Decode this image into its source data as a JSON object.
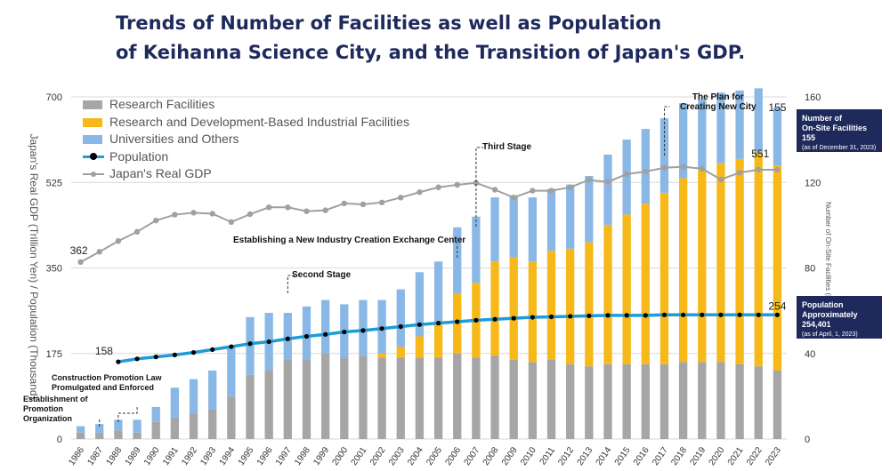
{
  "title": {
    "line1": "Trends of Number of Facilities as well as Population",
    "line2": "of Keihanna Science City, and the Transition of Japan's GDP."
  },
  "colors": {
    "research": "#a6a6a6",
    "rd_industrial": "#f6b919",
    "universities": "#8ab8e6",
    "population": "#1f9bd7",
    "gdp": "#a0a0a0",
    "title": "#1f2a5c"
  },
  "legend": {
    "research": "Research Facilities",
    "rd_industrial": "Research and Development-Based Industrial Facilities",
    "universities": "Universities and Others",
    "population": "Population",
    "gdp": "Japan's Real GDP"
  },
  "info_boxes": {
    "facilities": {
      "line1": "Number of",
      "line2": "On-Site Facilities 155",
      "line3": "(as of December 31, 2023)"
    },
    "population": {
      "line1": "Population",
      "line2": "Approximately",
      "line3": "254,401",
      "line4": "(as of April, 1, 2023)"
    }
  },
  "annotations": {
    "establishment": "Establishment of\nPromotion\nOrganization",
    "law": "Construction Promotion Law\nPromulgated and Enforced",
    "second_stage": "Second Stage",
    "exchange_center": "Establishing a New Industry Creation Exchange Center",
    "third_stage": "Third Stage",
    "plan": "The Plan for\nCreating New City"
  },
  "chart_data": {
    "type": "bar",
    "title": "Trends of Number of Facilities as well as Population of Keihanna Science City, and the Transition of Japan's GDP.",
    "categories": [
      "1986",
      "1987",
      "1988",
      "1989",
      "1990",
      "1991",
      "1992",
      "1993",
      "1994",
      "1995",
      "1996",
      "1997",
      "1998",
      "1999",
      "2000",
      "2001",
      "2002",
      "2003",
      "2004",
      "2005",
      "2006",
      "2007",
      "2008",
      "2009",
      "2010",
      "2011",
      "2012",
      "2013",
      "2014",
      "2015",
      "2016",
      "2017",
      "2018",
      "2019",
      "2020",
      "2021",
      "2022",
      "2023"
    ],
    "ylabel": "Japan's Real GDP (Trillion Yen) / Population (Thousand)",
    "ylabel_right": "Number of On-Site Facilities (Institutions)",
    "ylim": [
      0,
      700
    ],
    "yticks": [
      0,
      175,
      350,
      525,
      700
    ],
    "ylim_right": [
      0,
      160
    ],
    "yticks_right": [
      0,
      40,
      80,
      120,
      160
    ],
    "series": [
      {
        "name": "Research Facilities",
        "axis": "right",
        "stack": true,
        "values": [
          3,
          3,
          4,
          3,
          8,
          10,
          12,
          14,
          20,
          30,
          32,
          37,
          37,
          40,
          38,
          39,
          38,
          38,
          38,
          38,
          40,
          38,
          39,
          37,
          36,
          37,
          35,
          34,
          35,
          35,
          35,
          35,
          36,
          36,
          36,
          35,
          34,
          32
        ]
      },
      {
        "name": "Research and Development-Based Industrial Facilities",
        "axis": "right",
        "stack": true,
        "values": [
          0,
          0,
          0,
          0,
          0,
          0,
          0,
          0,
          0,
          0,
          0,
          0,
          0,
          0,
          0,
          0,
          2,
          5,
          10,
          16,
          28,
          35,
          44,
          48,
          47,
          51,
          54,
          58,
          65,
          70,
          75,
          80,
          86,
          90,
          93,
          96,
          100,
          96
        ]
      },
      {
        "name": "Universities and Others",
        "axis": "right",
        "stack": true,
        "values": [
          3,
          4,
          5,
          6,
          7,
          14,
          16,
          18,
          23,
          27,
          27,
          22,
          25,
          25,
          25,
          26,
          25,
          27,
          30,
          29,
          31,
          31,
          30,
          29,
          30,
          29,
          30,
          31,
          33,
          35,
          35,
          35,
          35,
          33,
          33,
          32,
          30,
          27
        ]
      },
      {
        "name": "Population",
        "axis": "left",
        "type": "line",
        "x": [
          "1988",
          "1989",
          "1990",
          "1991",
          "1992",
          "1993",
          "1994",
          "1995",
          "1996",
          "1997",
          "1998",
          "1999",
          "2000",
          "2001",
          "2002",
          "2003",
          "2004",
          "2005",
          "2006",
          "2007",
          "2008",
          "2009",
          "2010",
          "2011",
          "2012",
          "2013",
          "2014",
          "2015",
          "2016",
          "2017",
          "2018",
          "2019",
          "2020",
          "2021",
          "2022",
          "2023"
        ],
        "values": [
          158,
          164,
          168,
          172,
          177,
          183,
          189,
          195,
          199,
          205,
          210,
          214,
          219,
          222,
          226,
          230,
          234,
          237,
          240,
          243,
          245,
          247,
          249,
          250,
          251,
          252,
          253,
          253,
          253,
          254,
          254,
          254,
          254,
          254,
          254,
          254
        ]
      },
      {
        "name": "Japan's Real GDP",
        "axis": "left",
        "type": "line",
        "values": [
          362,
          383,
          405,
          424,
          447,
          459,
          463,
          461,
          444,
          460,
          474,
          474,
          466,
          468,
          482,
          480,
          484,
          494,
          505,
          515,
          520,
          524,
          510,
          494,
          508,
          508,
          515,
          530,
          526,
          542,
          547,
          555,
          557,
          553,
          531,
          545,
          551,
          551
        ]
      }
    ],
    "data_labels": {
      "gdp_start": "362",
      "gdp_end": "551",
      "pop_start": "158",
      "pop_end": "254",
      "facilities_end": "155"
    }
  }
}
